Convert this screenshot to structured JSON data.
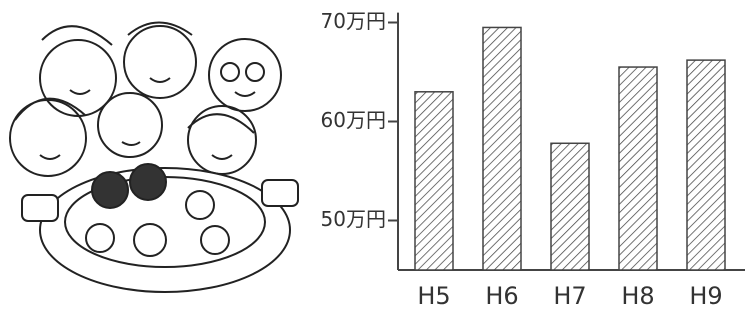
{
  "chart_data": {
    "type": "bar",
    "categories": [
      "H5",
      "H6",
      "H7",
      "H8",
      "H9"
    ],
    "values": [
      63,
      69.5,
      57.8,
      65.5,
      66.2
    ],
    "color": "#444",
    "hatch": true,
    "ylim": [
      45,
      71
    ],
    "yticks": [
      {
        "value": 50,
        "label": "50万円"
      },
      {
        "value": 60,
        "label": "60万円"
      },
      {
        "value": 70,
        "label": "70万円"
      }
    ]
  }
}
